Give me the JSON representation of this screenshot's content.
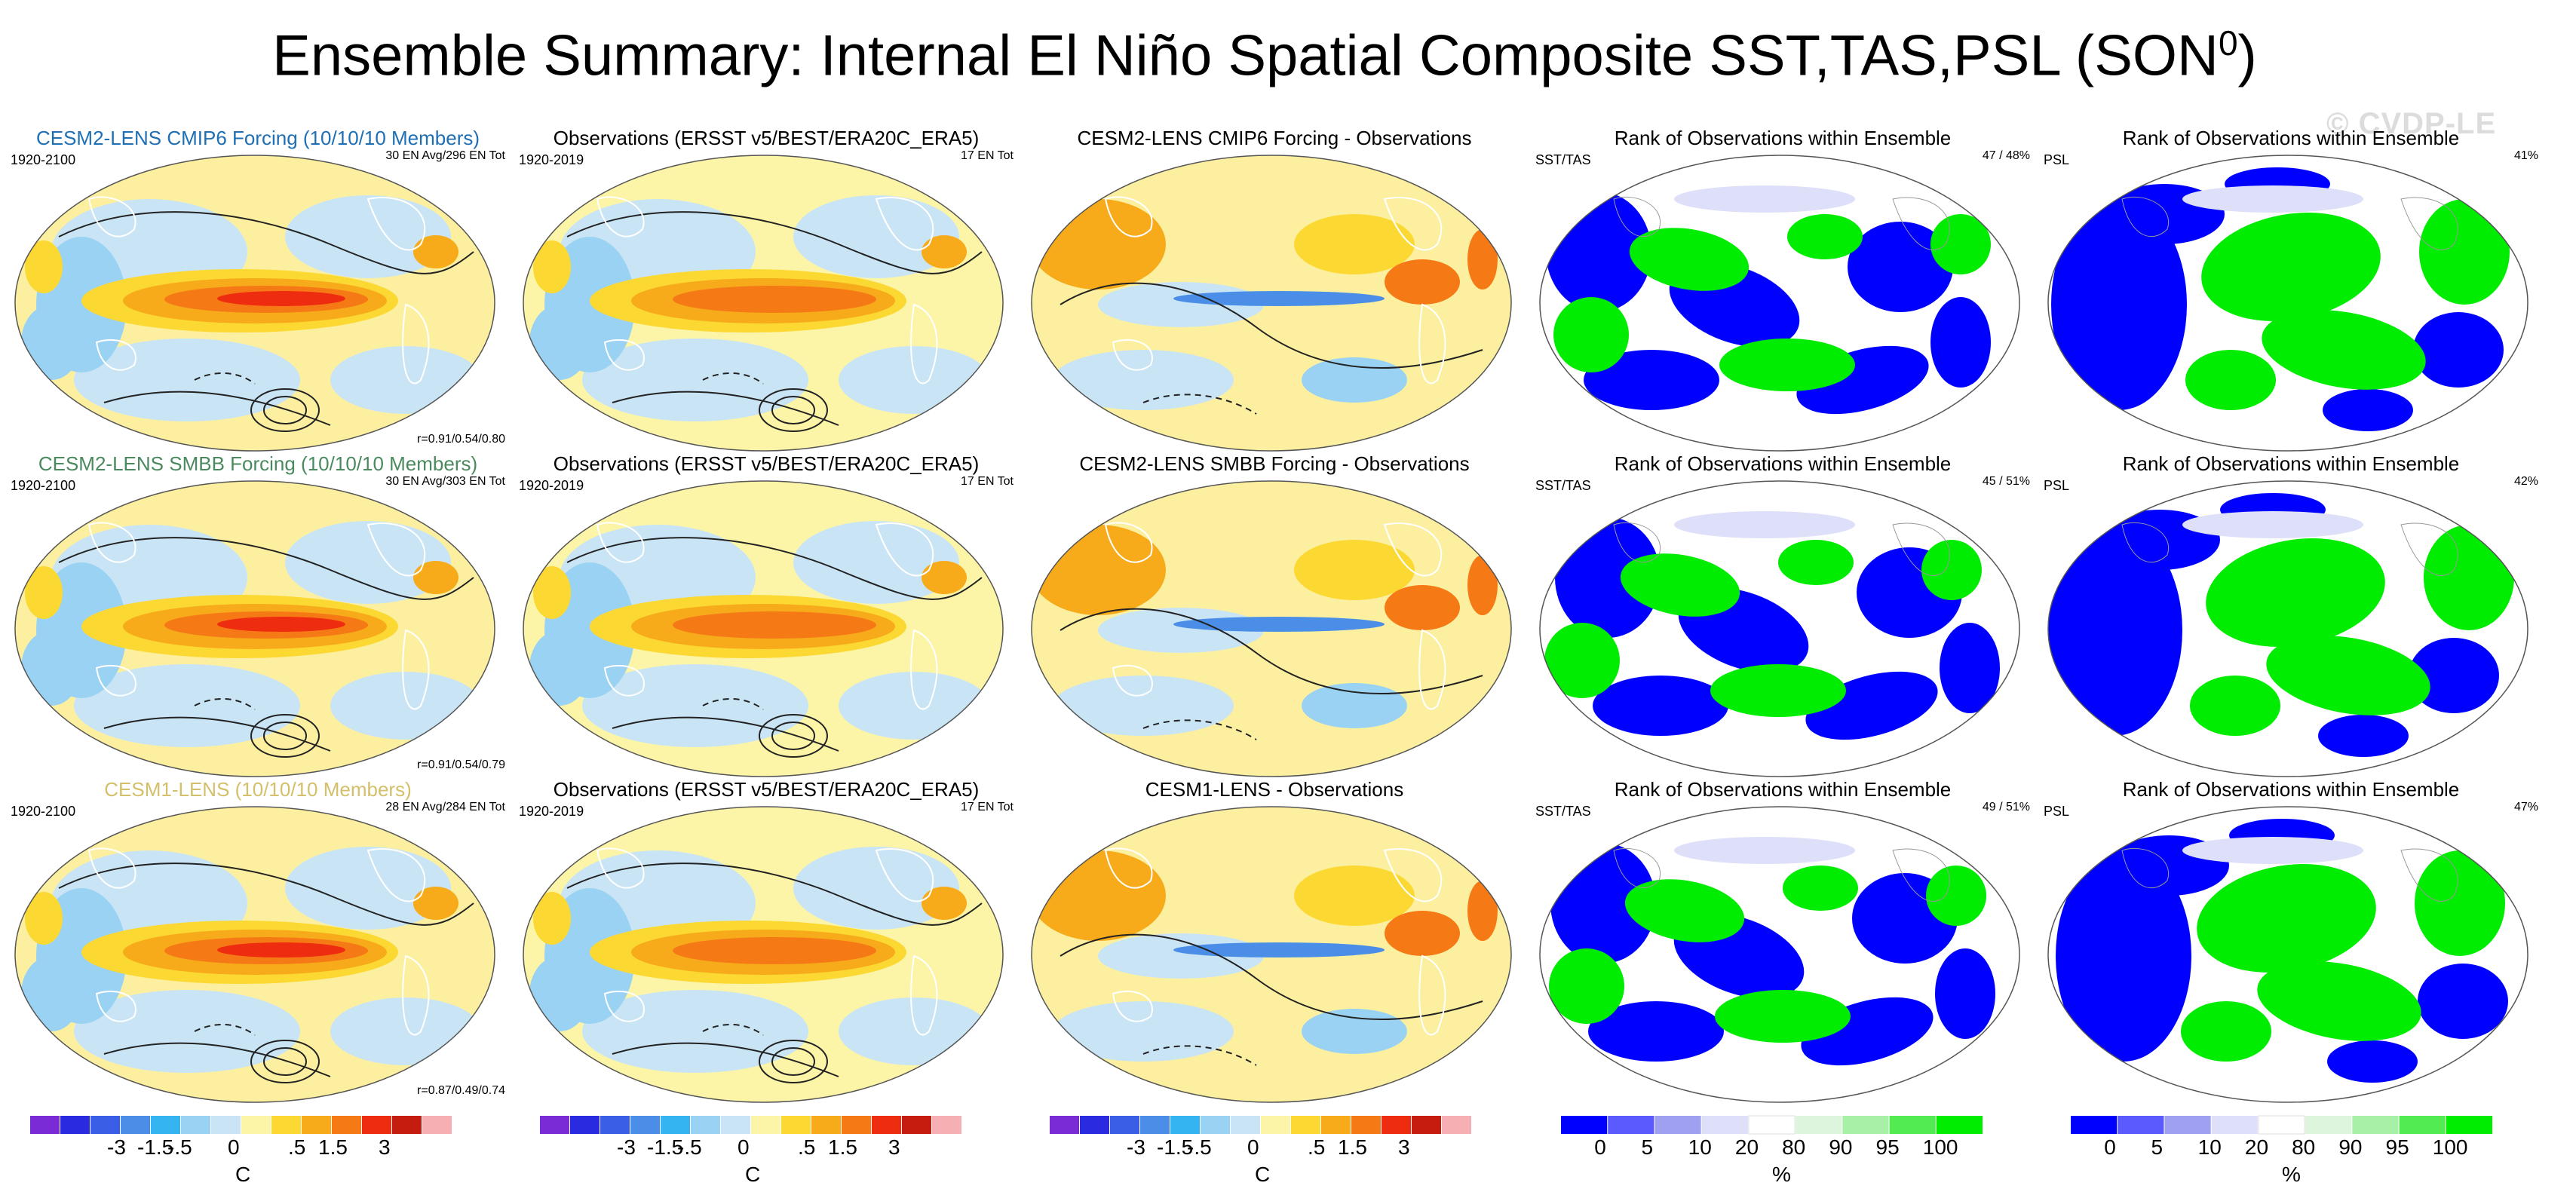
{
  "title": {
    "main": "Ensemble Summary: Internal El Niño Spatial Composite SST,TAS,PSL (SON",
    "sup": "0",
    "close": ")"
  },
  "watermark": "© CVDP-LE",
  "colors": {
    "blue_title": "#1f6fb4",
    "green_title": "#4a8a5e",
    "tan_title": "#d4c06a",
    "temp_scale": [
      "#7a2bd6",
      "#2a2be0",
      "#3a5fe6",
      "#4a8ee8",
      "#34b4f0",
      "#9ad2f3",
      "#c9e5f5",
      "#fcf5a8",
      "#fcd833",
      "#f7ab1b",
      "#f57a16",
      "#ee2c0f",
      "#c41d10",
      "#f6b0b3"
    ],
    "rank_scale": [
      "#0000ff",
      "#5a5aff",
      "#a0a0f0",
      "#dedff8",
      "#ffffff",
      "#dcf5dc",
      "#a8f0a8",
      "#52ec52",
      "#00ec00"
    ]
  },
  "panels": [
    {
      "title": "CESM2-LENS CMIP6 Forcing (10/10/10 Members)",
      "title_color": "blue",
      "left": "1920-2100",
      "right": "30 EN Avg/296 EN Tot",
      "corr": "r=0.91/0.54/0.80",
      "kind": "model"
    },
    {
      "title": "Observations (ERSST v5/BEST/ERA20C_ERA5)",
      "title_color": "black",
      "left": "1920-2019",
      "right": "17 EN Tot",
      "corr": "",
      "kind": "obs"
    },
    {
      "title": "CESM2-LENS CMIP6 Forcing - Observations",
      "title_color": "black",
      "left": "",
      "right": "",
      "corr": "",
      "kind": "diff"
    },
    {
      "title": "Rank of Observations within Ensemble",
      "title_color": "black",
      "left": "SST/TAS",
      "right": "47 /  48%",
      "corr": "",
      "kind": "rank"
    },
    {
      "title": "Rank of Observations within Ensemble",
      "title_color": "black",
      "left": "PSL",
      "right": "41%",
      "corr": "",
      "kind": "rankpsl"
    },
    {
      "title": "CESM2-LENS SMBB Forcing (10/10/10 Members)",
      "title_color": "green",
      "left": "1920-2100",
      "right": "30 EN Avg/303 EN Tot",
      "corr": "r=0.91/0.54/0.79",
      "kind": "model"
    },
    {
      "title": "Observations (ERSST v5/BEST/ERA20C_ERA5)",
      "title_color": "black",
      "left": "1920-2019",
      "right": "17 EN Tot",
      "corr": "",
      "kind": "obs"
    },
    {
      "title": "CESM2-LENS SMBB Forcing - Observations",
      "title_color": "black",
      "left": "",
      "right": "",
      "corr": "",
      "kind": "diff"
    },
    {
      "title": "Rank of Observations within Ensemble",
      "title_color": "black",
      "left": "SST/TAS",
      "right": "45 /  51%",
      "corr": "",
      "kind": "rank"
    },
    {
      "title": "Rank of Observations within Ensemble",
      "title_color": "black",
      "left": "PSL",
      "right": "42%",
      "corr": "",
      "kind": "rankpsl"
    },
    {
      "title": "CESM1-LENS (10/10/10 Members)",
      "title_color": "tan",
      "left": "1920-2100",
      "right": "28 EN Avg/284 EN Tot",
      "corr": "r=0.87/0.49/0.74",
      "kind": "model"
    },
    {
      "title": "Observations (ERSST v5/BEST/ERA20C_ERA5)",
      "title_color": "black",
      "left": "1920-2019",
      "right": "17 EN Tot",
      "corr": "",
      "kind": "obs"
    },
    {
      "title": "CESM1-LENS - Observations",
      "title_color": "black",
      "left": "",
      "right": "",
      "corr": "",
      "kind": "diff"
    },
    {
      "title": "Rank of Observations within Ensemble",
      "title_color": "black",
      "left": "SST/TAS",
      "right": "49 /  51%",
      "corr": "",
      "kind": "rank"
    },
    {
      "title": "Rank of Observations within Ensemble",
      "title_color": "black",
      "left": "PSL",
      "right": "47%",
      "corr": "",
      "kind": "rankpsl"
    }
  ],
  "legends": {
    "temp": {
      "ticks": [
        "-3",
        "-1.5",
        "-.5",
        "0",
        ".5",
        "1.5",
        "3"
      ],
      "unit": "C"
    },
    "rank": {
      "ticks": [
        "0",
        "5",
        "10",
        "20",
        "80",
        "90",
        "95",
        "100"
      ],
      "unit": "%"
    }
  },
  "chart_data": {
    "type": "heatmap",
    "title": "Ensemble Summary: Internal El Niño Spatial Composite SST,TAS,PSL (SON0)",
    "grid": "3 rows x 5 columns of global map panels",
    "rows": [
      "CESM2-LENS CMIP6 Forcing",
      "CESM2-LENS SMBB Forcing",
      "CESM1-LENS"
    ],
    "columns": [
      "Ensemble composite",
      "Observations",
      "Ensemble - Observations",
      "Rank SST/TAS",
      "Rank PSL"
    ],
    "temperature_colorbar": {
      "unit": "C",
      "tick_labels": [
        "-3",
        "-1.5",
        "-.5",
        "0",
        ".5",
        "1.5",
        "3"
      ]
    },
    "rank_colorbar": {
      "unit": "%",
      "tick_labels": [
        "0",
        "5",
        "10",
        "20",
        "80",
        "90",
        "95",
        "100"
      ]
    },
    "pattern_correlations": [
      "r=0.91/0.54/0.80",
      "r=0.91/0.54/0.79",
      "r=0.87/0.49/0.74"
    ],
    "rank_percentages": {
      "sst_tas": [
        "47 /  48%",
        "45 /  51%",
        "49 /  51%"
      ],
      "psl": [
        "41%",
        "42%",
        "47%"
      ]
    }
  }
}
